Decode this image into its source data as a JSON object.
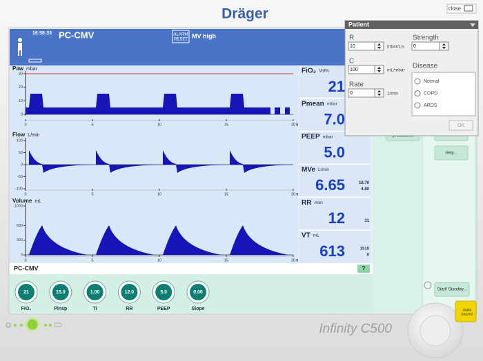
{
  "brand": "Dräger",
  "close_button": "close",
  "header": {
    "time": "16:58:33",
    "mode": "PC-CMV",
    "alarm_reset": [
      "ALARM",
      "RESET"
    ],
    "alarm": "MV high"
  },
  "waveforms": [
    {
      "label": "Paw",
      "unit": "mbar",
      "ylim": [
        0,
        30
      ],
      "yticks": [
        0,
        10,
        20,
        30
      ],
      "xlim": [
        0,
        20
      ],
      "xticks": [
        0,
        5,
        10,
        15,
        20
      ],
      "x_unit": "s"
    },
    {
      "label": "Flow",
      "unit": "L/min",
      "ylim": [
        -100,
        100
      ],
      "yticks": [
        -100,
        -50,
        0,
        50,
        100
      ],
      "xlim": [
        0,
        20
      ],
      "xticks": [
        0,
        5,
        10,
        15,
        20
      ],
      "x_unit": "s"
    },
    {
      "label": "Volume",
      "unit": "mL",
      "ylim": [
        0,
        1000
      ],
      "yticks": [
        0,
        300,
        600,
        1000
      ],
      "xlim": [
        0,
        20
      ],
      "xticks": [
        0,
        5,
        10,
        15,
        20
      ],
      "x_unit": "s"
    }
  ],
  "measurements": [
    {
      "label": "FiO₂",
      "unit": "Vol%",
      "value": "21"
    },
    {
      "label": "Pmean",
      "unit": "mbar",
      "value": "7.0"
    },
    {
      "label": "PEEP",
      "unit": "mbar",
      "value": "5.0"
    },
    {
      "label": "MVe",
      "unit": "L/min",
      "value": "6.65",
      "limits": [
        "18.70",
        "4.80"
      ]
    },
    {
      "label": "RR",
      "unit": "/min",
      "value": "12",
      "limits": [
        "31"
      ]
    },
    {
      "label": "VT",
      "unit": "mL",
      "value": "613",
      "limits": [
        "1510",
        "0"
      ]
    }
  ],
  "status_bar": {
    "mode": "PC-CMV",
    "help": "?"
  },
  "settings": [
    {
      "label": "FiO₂",
      "value": "21"
    },
    {
      "label": "Pinsp",
      "value": "15.0"
    },
    {
      "label": "Ti",
      "value": "1.00"
    },
    {
      "label": "RR",
      "value": "12.0"
    },
    {
      "label": "PEEP",
      "value": "5.0"
    },
    {
      "label": "Slope",
      "value": "0.00"
    }
  ],
  "side_buttons": {
    "procedures": "procedures",
    "help": "Help...",
    "start_standby": "Start/ Standby..."
  },
  "patient_dialog": {
    "title": "Patient",
    "fields": [
      {
        "label": "R",
        "value": "10",
        "unit": "mbar/L/s"
      },
      {
        "label": "C",
        "value": "100",
        "unit": "mL/mbar"
      },
      {
        "label": "Rate",
        "value": "0",
        "unit": "1/min"
      }
    ],
    "strength": {
      "label": "Strength",
      "value": "0"
    },
    "disease": {
      "label": "Disease",
      "options": [
        "Normal",
        "COPD",
        "ARDS"
      ]
    },
    "ok": "OK"
  },
  "device": {
    "model": "Infinity C500",
    "audio_paused": [
      "Audio",
      "paused"
    ]
  }
}
